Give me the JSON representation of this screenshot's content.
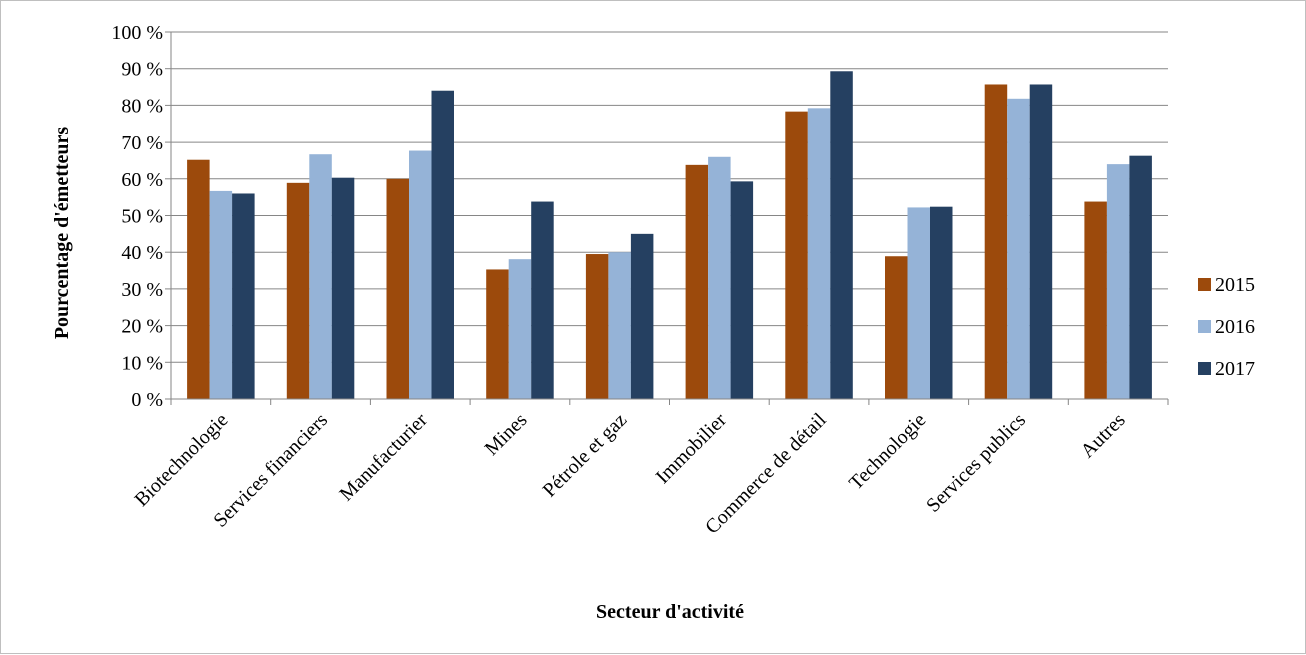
{
  "chart_data": {
    "type": "bar",
    "categories": [
      "Biotechnologie",
      "Services financiers",
      "Manufacturier",
      "Mines",
      "Pétrole et gaz",
      "Immobilier",
      "Commerce de détail",
      "Technologie",
      "Services publics",
      "Autres"
    ],
    "series": [
      {
        "name": "2015",
        "color": "#9c4a0c",
        "values": [
          65.2,
          58.9,
          60.0,
          35.3,
          39.5,
          63.8,
          78.3,
          38.9,
          85.7,
          53.8
        ]
      },
      {
        "name": "2016",
        "color": "#95b3d7",
        "values": [
          56.7,
          66.7,
          67.7,
          38.1,
          40.0,
          66.0,
          79.2,
          52.2,
          81.8,
          64.0
        ]
      },
      {
        "name": "2017",
        "color": "#254061",
        "values": [
          56.0,
          60.3,
          84.0,
          53.8,
          45.0,
          59.3,
          89.3,
          52.4,
          85.7,
          66.3
        ]
      }
    ],
    "ylim": [
      0,
      100
    ],
    "yticks": [
      "0 %",
      "10 %",
      "20 %",
      "30 %",
      "40 %",
      "50 %",
      "60 %",
      "70 %",
      "80 %",
      "90 %",
      "100 %"
    ],
    "xlabel": "Secteur d'activité",
    "ylabel": "Pourcentage d'émetteurs",
    "grid": true,
    "legend_position": "right"
  }
}
